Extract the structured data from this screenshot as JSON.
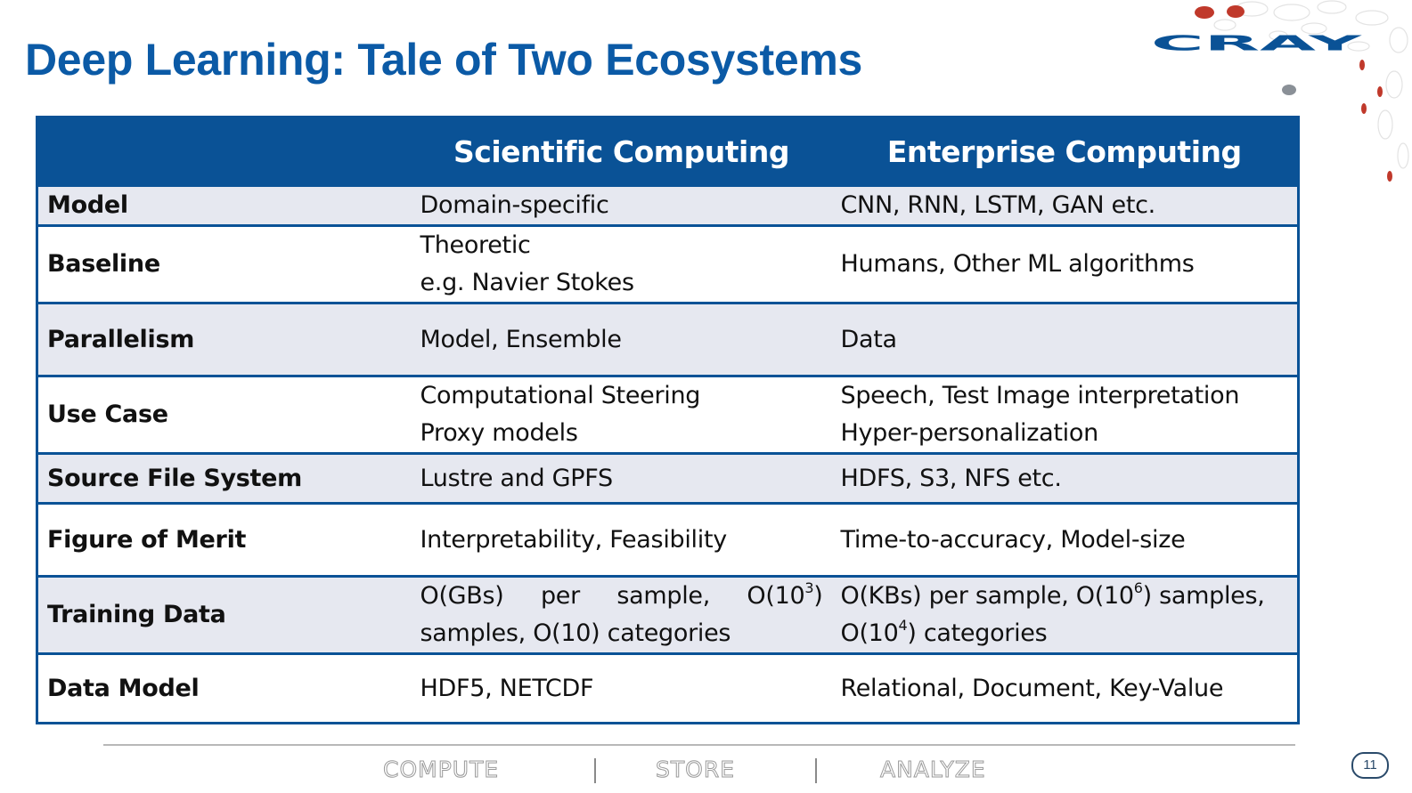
{
  "slide": {
    "title": "Deep Learning: Tale of Two Ecosystems",
    "page_number": "11"
  },
  "logo": {
    "text": "CRAY"
  },
  "table": {
    "headers": [
      "",
      "Scientific Computing",
      "Enterprise Computing"
    ],
    "rows": [
      {
        "label": "Model",
        "scientific": [
          "Domain-specific"
        ],
        "enterprise": [
          "CNN, RNN, LSTM, GAN etc."
        ]
      },
      {
        "label": "Baseline",
        "scientific": [
          "Theoretic",
          "e.g. Navier Stokes"
        ],
        "enterprise": [
          "Humans, Other ML algorithms"
        ]
      },
      {
        "label": "Parallelism",
        "scientific": [
          "Model, Ensemble"
        ],
        "enterprise": [
          "Data"
        ]
      },
      {
        "label": "Use Case",
        "scientific": [
          "Computational Steering",
          "Proxy models"
        ],
        "enterprise": [
          "Speech, Test Image interpretation",
          "Hyper-personalization"
        ]
      },
      {
        "label": "Source File System",
        "scientific": [
          "Lustre and GPFS"
        ],
        "enterprise": [
          "HDFS, S3, NFS etc."
        ]
      },
      {
        "label": "Figure of Merit",
        "scientific": [
          "Interpretability, Feasibility"
        ],
        "enterprise": [
          "Time-to-accuracy, Model-size"
        ]
      },
      {
        "label": "Training Data",
        "scientific": {
          "part1": "O(GBs) per sample, O(10",
          "exp1": "3",
          "part2": ") samples, O(10) categories"
        },
        "enterprise": {
          "part1": "O(KBs) per sample, O(10",
          "exp1": "6",
          "part2": ") samples,",
          "part3": "O(10",
          "exp2": "4",
          "part4": ") categories"
        }
      },
      {
        "label": "Data Model",
        "scientific": [
          "HDF5, NETCDF"
        ],
        "enterprise": [
          "Relational, Document, Key-Value"
        ]
      }
    ]
  },
  "footer": {
    "items": [
      "COMPUTE",
      "STORE",
      "ANALYZE"
    ]
  },
  "colors": {
    "title": "#0b5aa6",
    "header_bg": "#0a5296",
    "row_shade": "#e6e8f0",
    "logo_blue": "#0a5296",
    "logo_red": "#c0392b"
  }
}
